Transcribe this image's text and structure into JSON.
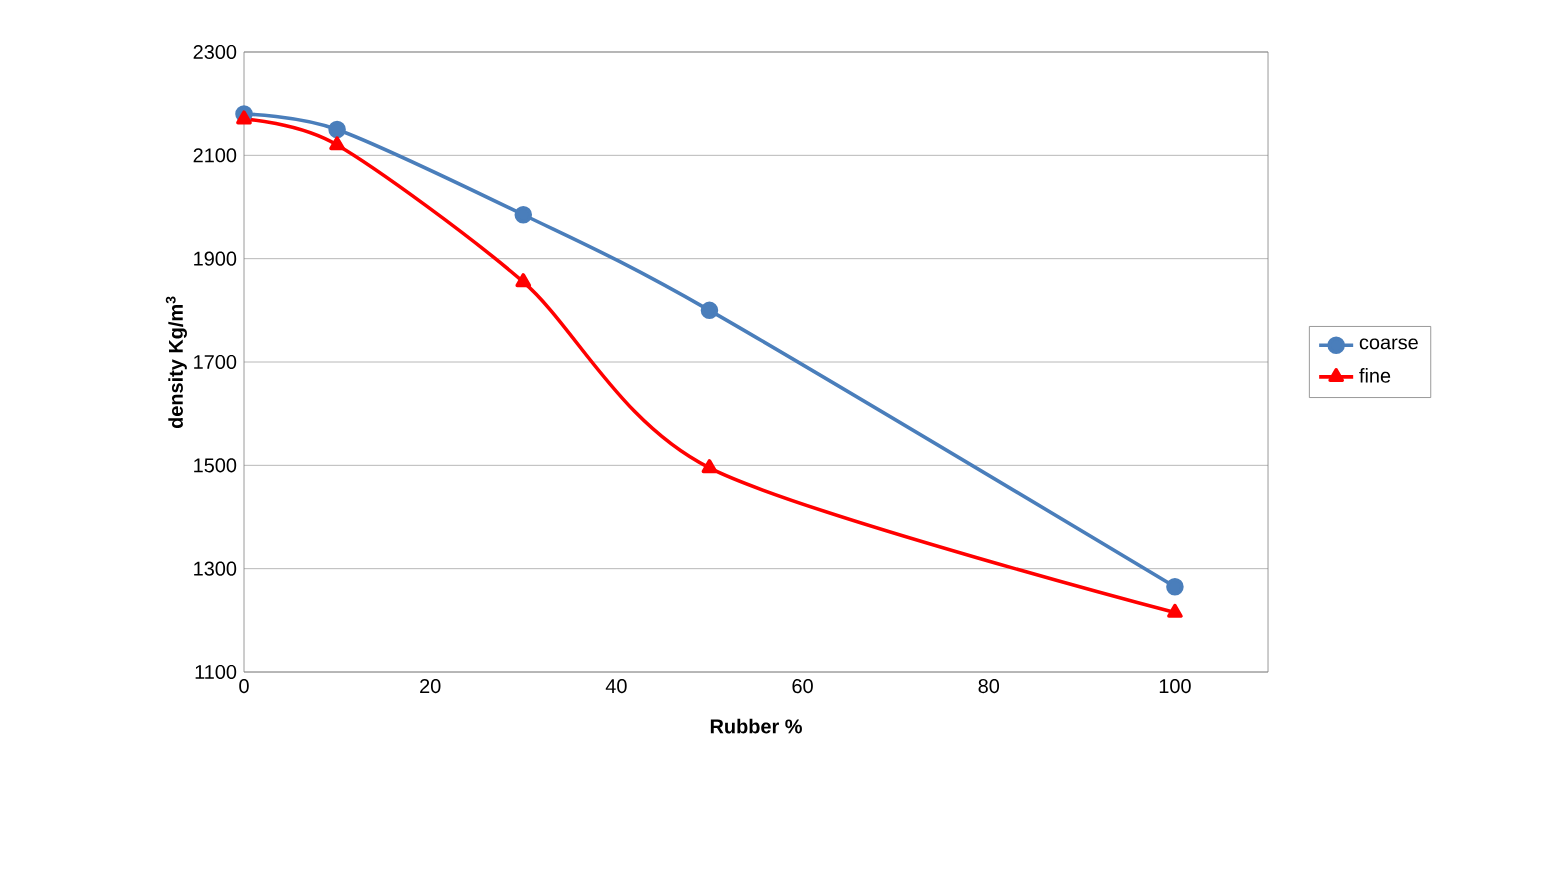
{
  "chart_data": {
    "type": "line",
    "xlabel": "Rubber %",
    "ylabel": "density Kg/m$^{3}$",
    "x": [
      0,
      10,
      30,
      50,
      100
    ],
    "series": [
      {
        "name": "coarse",
        "color": "#4a7ebb",
        "marker": "circle",
        "values": [
          2180,
          2150,
          1985,
          1800,
          1265
        ]
      },
      {
        "name": "fine",
        "color": "#ff0000",
        "marker": "triangle",
        "values": [
          2170,
          2120,
          1855,
          1495,
          1215
        ]
      }
    ],
    "xlim": [
      0,
      110
    ],
    "ylim": [
      1100,
      2300
    ],
    "xticks": [
      0,
      20,
      40,
      60,
      80,
      100
    ],
    "yticks": [
      1100,
      1300,
      1500,
      1700,
      1900,
      2100,
      2300
    ],
    "grid": "y",
    "legend": "right"
  }
}
